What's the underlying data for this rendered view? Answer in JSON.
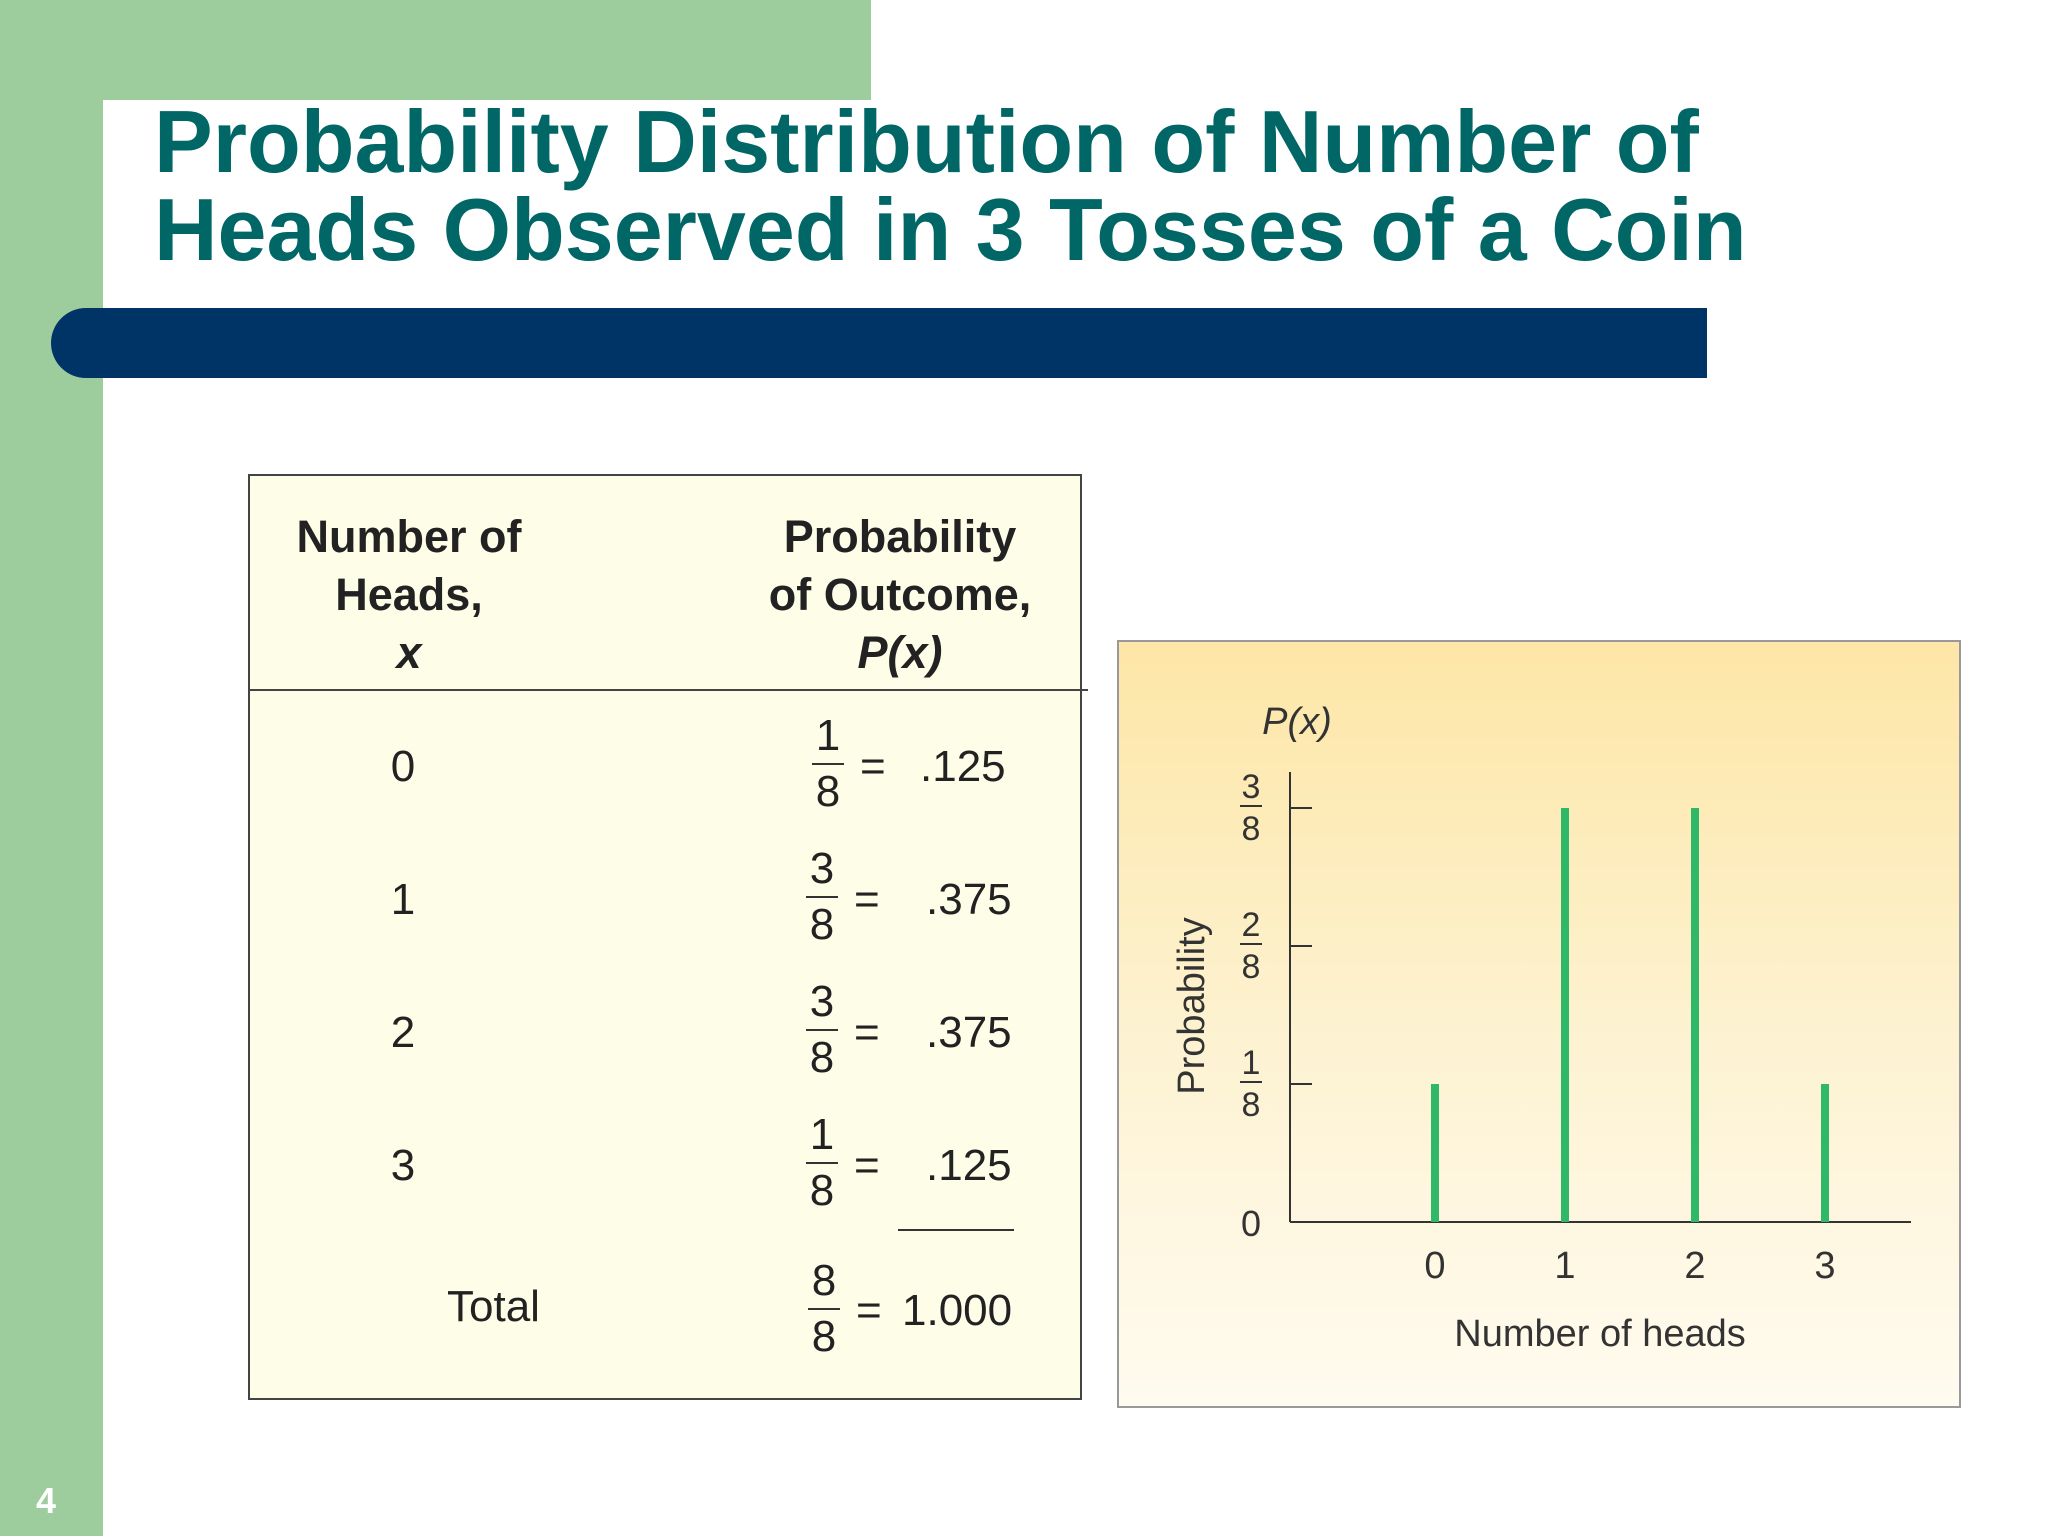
{
  "slide": {
    "title_line1": "Probability Distribution of Number of",
    "title_line2": "Heads Observed in 3 Tosses of a Coin",
    "page_number": "4",
    "colors": {
      "title": "#006666",
      "bar": "#003366",
      "band": "#9dcc9d"
    }
  },
  "table": {
    "header_x": [
      "Number of",
      "Heads,",
      "x"
    ],
    "header_p": [
      "Probability",
      "of Outcome,",
      "P(x)"
    ],
    "rows": [
      {
        "x": "0",
        "num": "1",
        "den": "8",
        "eq": "=",
        "dec": ".125"
      },
      {
        "x": "1",
        "num": "3",
        "den": "8",
        "eq": "=",
        "dec": ".375"
      },
      {
        "x": "2",
        "num": "3",
        "den": "8",
        "eq": "=",
        "dec": ".375"
      },
      {
        "x": "3",
        "num": "1",
        "den": "8",
        "eq": "=",
        "dec": ".125"
      }
    ],
    "total": {
      "label": "Total",
      "num": "8",
      "den": "8",
      "eq": "=",
      "dec": "1.000"
    }
  },
  "chart_data": {
    "type": "bar",
    "categories": [
      "0",
      "1",
      "2",
      "3"
    ],
    "values": [
      0.125,
      0.375,
      0.375,
      0.125
    ],
    "ylabel": "Probability",
    "xlabel": "Number of heads",
    "y_top_label": "P(x)",
    "ylim": [
      0,
      0.375
    ],
    "yticks": [
      {
        "value": 0,
        "num": "0",
        "den": ""
      },
      {
        "value": 0.125,
        "num": "1",
        "den": "8"
      },
      {
        "value": 0.25,
        "num": "2",
        "den": "8"
      },
      {
        "value": 0.375,
        "num": "3",
        "den": "8"
      }
    ],
    "bar_color": "#2fb868",
    "grid": false
  }
}
